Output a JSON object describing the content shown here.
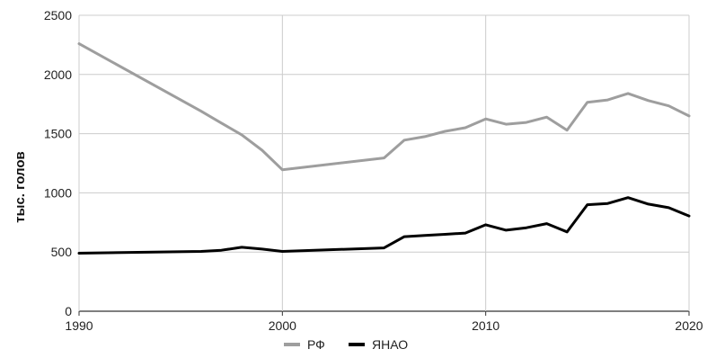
{
  "chart_data": {
    "type": "line",
    "title": "",
    "xlabel": "",
    "ylabel": "тыс. голов",
    "xlim": [
      1990,
      2020
    ],
    "ylim": [
      0,
      2500
    ],
    "x_ticks": [
      1990,
      2000,
      2010,
      2020
    ],
    "y_ticks": [
      0,
      500,
      1000,
      1500,
      2000,
      2500
    ],
    "grid": true,
    "legend_position": "bottom",
    "series": [
      {
        "name": "РФ",
        "color": "#9e9e9e",
        "x": [
          1990,
          1996,
          1997,
          1998,
          1999,
          2000,
          2005,
          2006,
          2007,
          2008,
          2009,
          2010,
          2011,
          2012,
          2013,
          2014,
          2015,
          2016,
          2017,
          2018,
          2019,
          2020
        ],
        "y": [
          2260,
          1690,
          1590,
          1490,
          1360,
          1195,
          1295,
          1445,
          1475,
          1520,
          1550,
          1625,
          1580,
          1595,
          1640,
          1530,
          1765,
          1785,
          1840,
          1780,
          1735,
          1650
        ]
      },
      {
        "name": "ЯНАО",
        "color": "#000000",
        "x": [
          1990,
          1996,
          1997,
          1998,
          1999,
          2000,
          2005,
          2006,
          2007,
          2008,
          2009,
          2010,
          2011,
          2012,
          2013,
          2014,
          2015,
          2016,
          2017,
          2018,
          2019,
          2020
        ],
        "y": [
          490,
          505,
          515,
          540,
          525,
          505,
          535,
          630,
          640,
          650,
          660,
          730,
          685,
          705,
          740,
          670,
          900,
          910,
          960,
          905,
          875,
          805
        ]
      }
    ]
  }
}
